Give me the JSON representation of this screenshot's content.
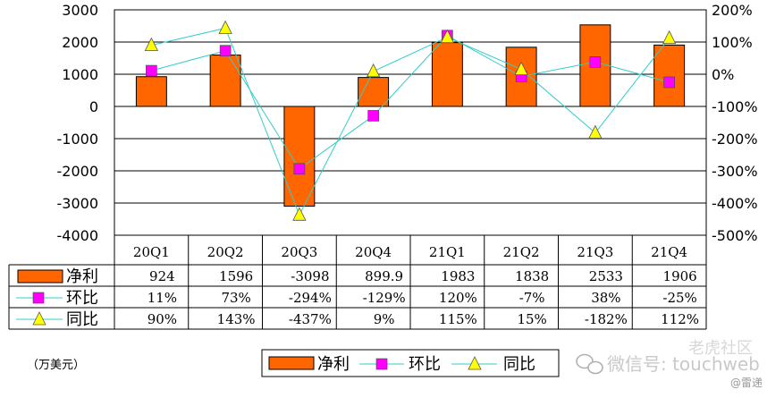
{
  "chart_data": {
    "type": "bar",
    "categories": [
      "20Q1",
      "20Q2",
      "20Q3",
      "20Q4",
      "21Q1",
      "21Q2",
      "21Q3",
      "21Q4"
    ],
    "series": [
      {
        "name": "净利",
        "kind": "bar",
        "axis": "left",
        "values": [
          924,
          1596,
          -3098,
          899.9,
          1983,
          1838,
          2533,
          1906
        ],
        "labels": [
          "924",
          "1596",
          "-3098",
          "899.9",
          "1983",
          "1838",
          "2533",
          "1906"
        ],
        "color": "#ff6600"
      },
      {
        "name": "环比",
        "kind": "line",
        "axis": "right",
        "marker": "square",
        "values": [
          11,
          73,
          -294,
          -129,
          120,
          -7,
          38,
          -25
        ],
        "labels": [
          "11%",
          "73%",
          "-294%",
          "-129%",
          "120%",
          "-7%",
          "38%",
          "-25%"
        ],
        "color": "#ff00ff"
      },
      {
        "name": "同比",
        "kind": "line",
        "axis": "right",
        "marker": "triangle",
        "values": [
          90,
          143,
          -437,
          9,
          115,
          15,
          -182,
          112
        ],
        "labels": [
          "90%",
          "143%",
          "-437%",
          "9%",
          "115%",
          "15%",
          "-182%",
          "112%"
        ],
        "color": "#ffff00"
      }
    ],
    "ylim_left": [
      -4000,
      3000
    ],
    "yticks_left": [
      "3000",
      "2000",
      "1000",
      "0",
      "-1000",
      "-2000",
      "-3000",
      "-4000"
    ],
    "ylim_right": [
      -500,
      200
    ],
    "yticks_right": [
      "200%",
      "100%",
      "0%",
      "-100%",
      "-200%",
      "-300%",
      "-400%",
      "-500%"
    ],
    "unit_label": "（万美元）",
    "line_color": "#33cccc",
    "grid": true,
    "legend_placement": "bottom"
  },
  "watermark": {
    "wechat": "微信号: touchweb",
    "brand": "老虎社区",
    "handle": "@雷递"
  }
}
